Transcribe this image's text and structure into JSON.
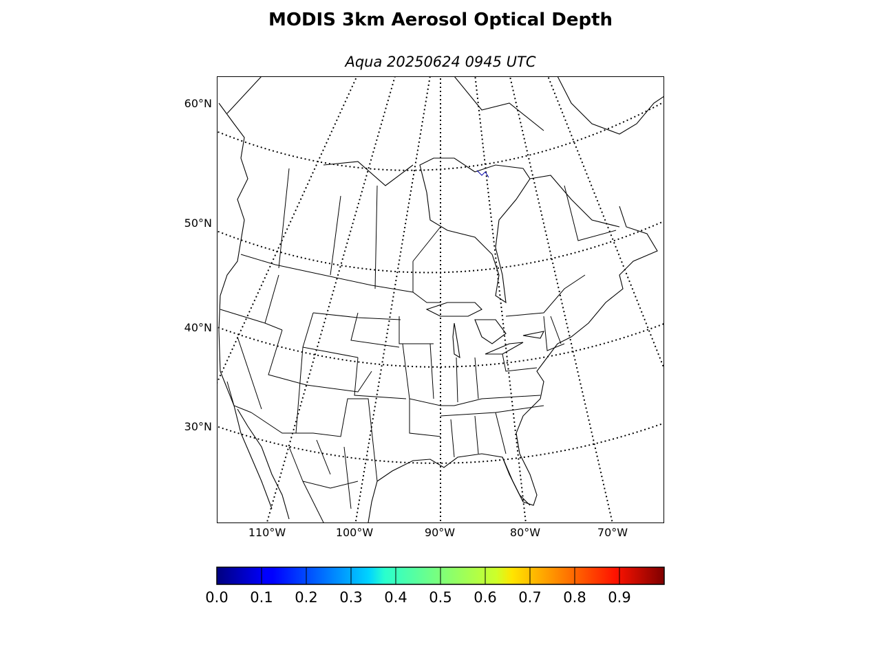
{
  "title": "MODIS 3km Aerosol Optical Depth",
  "subtitle": "Aqua 20250624 0945 UTC",
  "map": {
    "projection": "lambert-conformal",
    "region": "North America",
    "latitude_labels": [
      "60°N",
      "50°N",
      "40°N",
      "30°N"
    ],
    "longitude_labels": [
      "110°W",
      "100°W",
      "90°W",
      "80°W",
      "70°W"
    ],
    "graticule_style": "dotted",
    "features": [
      "coastlines",
      "country-borders",
      "state-borders"
    ],
    "aod_pixels_note_color": "#0000aa"
  },
  "colorbar": {
    "colormap": "jet",
    "min": 0.0,
    "max": 1.0,
    "tick_labels": [
      "0.0",
      "0.1",
      "0.2",
      "0.3",
      "0.4",
      "0.5",
      "0.6",
      "0.7",
      "0.8",
      "0.9"
    ],
    "colors": [
      "#000080",
      "#0000ff",
      "#0080ff",
      "#00ffff",
      "#80ff80",
      "#ffff00",
      "#ff8000",
      "#ff0000",
      "#800000"
    ]
  }
}
